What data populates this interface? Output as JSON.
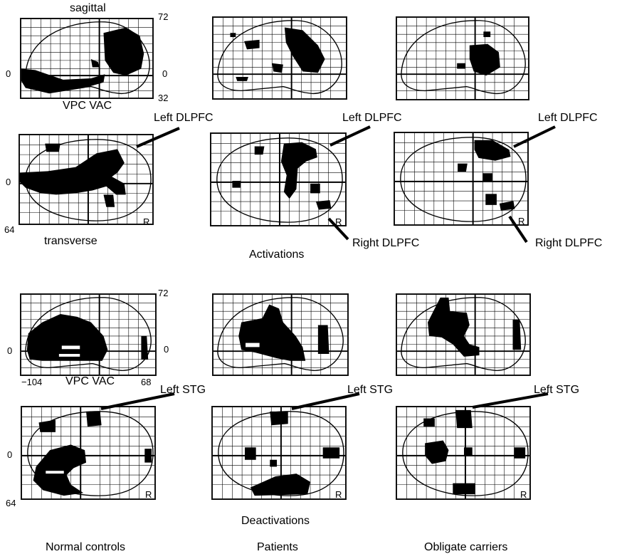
{
  "labels": {
    "sagittal": "sagittal",
    "transverse": "transverse",
    "activations": "Activations",
    "deactivations": "Deactivations",
    "vpc_vac_top": "VPC VAC",
    "vpc_vac_bottom": "VPC VAC",
    "left_dlpfc": "Left DLPFC",
    "right_dlpfc": "Right DLPFC",
    "left_stg": "Left STG",
    "r": "R"
  },
  "columns": [
    "Normal controls",
    "Patients",
    "Obligate carriers"
  ],
  "axis_ticks": {
    "top_72": "72",
    "top_0_left": "0",
    "top_0_right": "0",
    "top_32": "32",
    "trans_0": "0",
    "trans_64": "64",
    "bot_72": "72",
    "bot_0_left": "0",
    "bot_0_right": "0",
    "bot_neg104": "−104",
    "bot_68": "68",
    "bot_trans_0": "0",
    "bot_trans_64": "64"
  }
}
